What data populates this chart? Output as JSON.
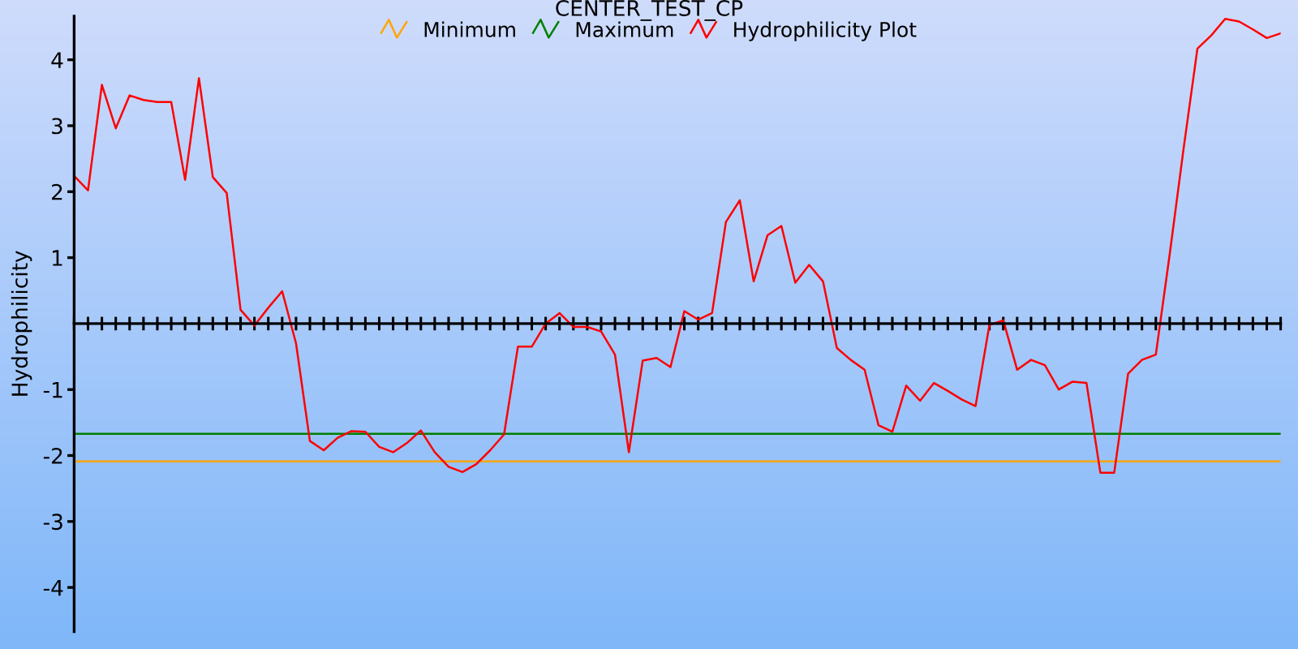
{
  "chart_data": {
    "type": "line",
    "title": "CENTER_TEST_CP",
    "ylabel": "Hydrophilicity",
    "categories": [
      null,
      null,
      null,
      null,
      null,
      null,
      null,
      null,
      null,
      null,
      null,
      null,
      null,
      null,
      null,
      null,
      null,
      null,
      null,
      null,
      null,
      null,
      null,
      null,
      null,
      null,
      null,
      null,
      null,
      null,
      null,
      null,
      null,
      null,
      null,
      null,
      null,
      null,
      null,
      null,
      null,
      null,
      null,
      null,
      null,
      null,
      null,
      null,
      null,
      null,
      null,
      null,
      null,
      null,
      null,
      null,
      null,
      null,
      null,
      null,
      null,
      null,
      null,
      null,
      null,
      null,
      null,
      null,
      null,
      null,
      null,
      null,
      null,
      null,
      null,
      null,
      null,
      null,
      null,
      null,
      null,
      null,
      null,
      null,
      null,
      null,
      null,
      null
    ],
    "series": [
      {
        "name": "Minimum",
        "color": "#ffa500",
        "values": [
          -2.09,
          -2.09,
          -2.09,
          -2.09,
          -2.09,
          -2.09,
          -2.09,
          -2.09,
          -2.09,
          -2.09,
          -2.09,
          -2.09,
          -2.09,
          -2.09,
          -2.09,
          -2.09,
          -2.09,
          -2.09,
          -2.09,
          -2.09,
          -2.09,
          -2.09,
          -2.09,
          -2.09,
          -2.09,
          -2.09,
          -2.09,
          -2.09,
          -2.09,
          -2.09,
          -2.09,
          -2.09,
          -2.09,
          -2.09,
          -2.09,
          -2.09,
          -2.09,
          -2.09,
          -2.09,
          -2.09,
          -2.09,
          -2.09,
          -2.09,
          -2.09,
          -2.09,
          -2.09,
          -2.09,
          -2.09,
          -2.09,
          -2.09,
          -2.09,
          -2.09,
          -2.09,
          -2.09,
          -2.09,
          -2.09,
          -2.09,
          -2.09,
          -2.09,
          -2.09,
          -2.09,
          -2.09,
          -2.09,
          -2.09,
          -2.09,
          -2.09,
          -2.09,
          -2.09,
          -2.09,
          -2.09,
          -2.09,
          -2.09,
          -2.09,
          -2.09,
          -2.09,
          -2.09,
          -2.09,
          -2.09,
          -2.09,
          -2.09,
          -2.09,
          -2.09,
          -2.09,
          -2.09,
          -2.09,
          -2.09,
          -2.09,
          -2.09
        ]
      },
      {
        "name": "Maximum",
        "color": "#008000",
        "values": [
          -1.67,
          -1.67,
          -1.67,
          -1.67,
          -1.67,
          -1.67,
          -1.67,
          -1.67,
          -1.67,
          -1.67,
          -1.67,
          -1.67,
          -1.67,
          -1.67,
          -1.67,
          -1.67,
          -1.67,
          -1.67,
          -1.67,
          -1.67,
          -1.67,
          -1.67,
          -1.67,
          -1.67,
          -1.67,
          -1.67,
          -1.67,
          -1.67,
          -1.67,
          -1.67,
          -1.67,
          -1.67,
          -1.67,
          -1.67,
          -1.67,
          -1.67,
          -1.67,
          -1.67,
          -1.67,
          -1.67,
          -1.67,
          -1.67,
          -1.67,
          -1.67,
          -1.67,
          -1.67,
          -1.67,
          -1.67,
          -1.67,
          -1.67,
          -1.67,
          -1.67,
          -1.67,
          -1.67,
          -1.67,
          -1.67,
          -1.67,
          -1.67,
          -1.67,
          -1.67,
          -1.67,
          -1.67,
          -1.67,
          -1.67,
          -1.67,
          -1.67,
          -1.67,
          -1.67,
          -1.67,
          -1.67,
          -1.67,
          -1.67,
          -1.67,
          -1.67,
          -1.67,
          -1.67,
          -1.67,
          -1.67,
          -1.67,
          -1.67,
          -1.67,
          -1.67,
          -1.67,
          -1.67,
          -1.67,
          -1.67,
          -1.67,
          -1.67
        ]
      },
      {
        "name": "Hydrophilicity Plot",
        "color": "#ff0000",
        "values": [
          2.24,
          2.02,
          3.62,
          2.96,
          3.46,
          3.39,
          3.36,
          3.36,
          2.18,
          3.72,
          2.22,
          1.98,
          0.21,
          -0.03,
          0.24,
          0.49,
          -0.3,
          -1.78,
          -1.92,
          -1.73,
          -1.63,
          -1.64,
          -1.87,
          -1.95,
          -1.81,
          -1.62,
          -1.95,
          -2.17,
          -2.25,
          -2.13,
          -1.92,
          -1.68,
          -0.35,
          -0.35,
          0.0,
          0.16,
          -0.05,
          -0.05,
          -0.12,
          -0.47,
          -1.95,
          -0.56,
          -0.52,
          -0.66,
          0.19,
          0.06,
          0.16,
          1.54,
          1.87,
          0.64,
          1.34,
          1.48,
          0.62,
          0.89,
          0.64,
          -0.37,
          -0.55,
          -0.7,
          -1.54,
          -1.64,
          -0.94,
          -1.17,
          -0.9,
          -1.02,
          -1.15,
          -1.25,
          -0.02,
          0.05,
          -0.7,
          -0.55,
          -0.63,
          -1.0,
          -0.88,
          -0.9,
          -2.26,
          -2.26,
          -0.76,
          -0.55,
          -0.47,
          1.05,
          2.65,
          4.17,
          4.37,
          4.62,
          4.58,
          4.46,
          4.33,
          4.4
        ]
      }
    ],
    "ylim": [
      -4.67,
      4.66
    ],
    "yticks": [
      -4,
      -3,
      -2,
      -1,
      1,
      2,
      3,
      4
    ],
    "grid": false,
    "legend": "top",
    "tick_labels": "y",
    "marker": "none",
    "line_style": "solid"
  }
}
